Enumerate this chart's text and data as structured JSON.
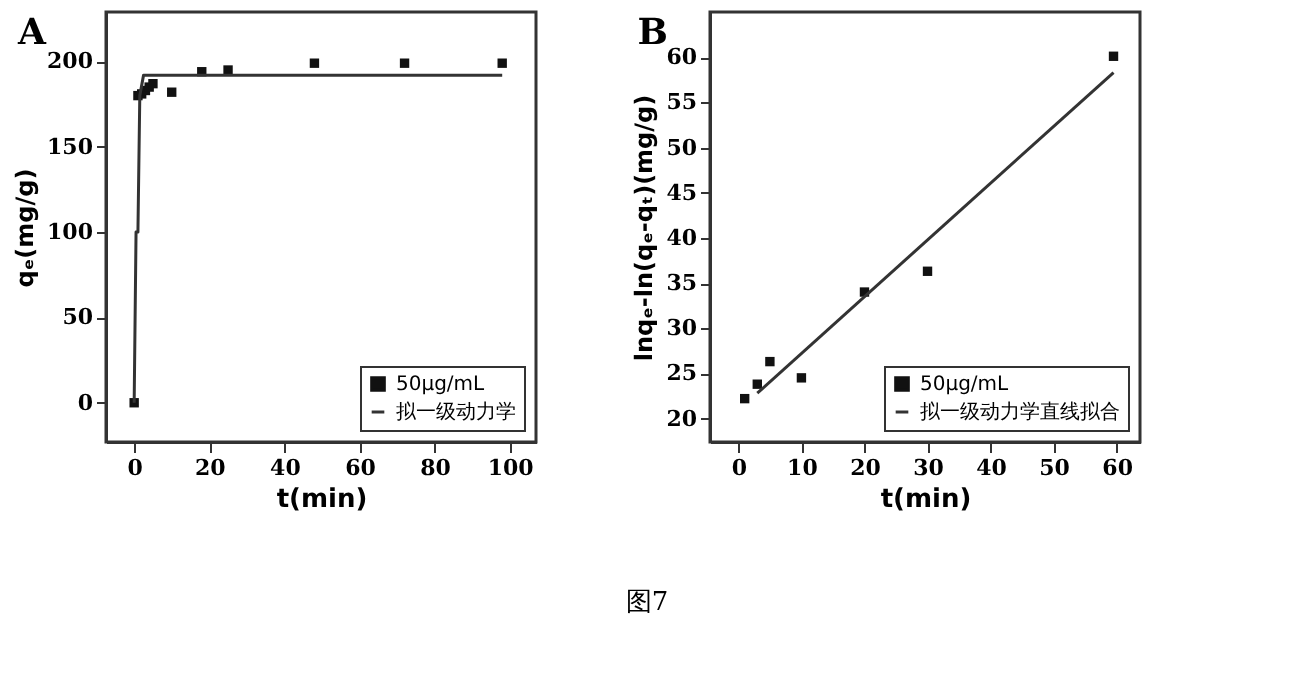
{
  "chart_data": [
    {
      "type": "scatter",
      "title": "A",
      "xlabel": "t(min)",
      "ylabel": "qₑ(mg/g)",
      "xlim": [
        -7.5,
        107
      ],
      "xticks": [
        0,
        20,
        40,
        60,
        80,
        100
      ],
      "ylim": [
        -23,
        229
      ],
      "yticks": [
        0,
        50,
        100,
        150,
        200
      ],
      "legend": "bottom right",
      "grid": false,
      "annotations": [
        "图7"
      ],
      "series": [
        {
          "name": "50μg/mL",
          "marker": "square",
          "color": "#111111",
          "x": [
            0,
            1,
            2,
            3,
            4,
            5,
            10,
            18,
            25,
            48,
            72,
            98
          ],
          "values": [
            0,
            180,
            181,
            183,
            185,
            187,
            182,
            194,
            195,
            199,
            199,
            199
          ]
        },
        {
          "name": "拟一级动力学",
          "type": "line",
          "marker": "none",
          "color": "#333333",
          "x": [
            0,
            0.5,
            1,
            1.5,
            2.5,
            98
          ],
          "values": [
            0,
            100,
            100,
            180,
            192,
            192
          ]
        }
      ]
    },
    {
      "type": "scatter",
      "title": "B",
      "xlabel": "t(min)",
      "ylabel": "lnqₑ-ln(qₑ-qₜ)(mg/g)",
      "xlim": [
        -4.5,
        63.7
      ],
      "xticks": [
        0,
        10,
        20,
        30,
        40,
        50,
        60
      ],
      "ylim": [
        17.4,
        65
      ],
      "yticks": [
        20,
        25,
        30,
        35,
        40,
        45,
        50,
        55,
        60
      ],
      "legend": "bottom right",
      "grid": false,
      "series": [
        {
          "name": "50μg/mL",
          "marker": "square",
          "color": "#111111",
          "x": [
            1,
            3,
            5,
            10,
            20,
            30,
            59.5
          ],
          "values": [
            22.2,
            23.8,
            26.3,
            24.5,
            34,
            36.3,
            60.1
          ]
        },
        {
          "name": "拟一级动力学直线拟合",
          "type": "line",
          "marker": "none",
          "color": "#333333",
          "x": [
            3,
            59.5
          ],
          "values": [
            22.8,
            58.3
          ]
        }
      ]
    }
  ]
}
